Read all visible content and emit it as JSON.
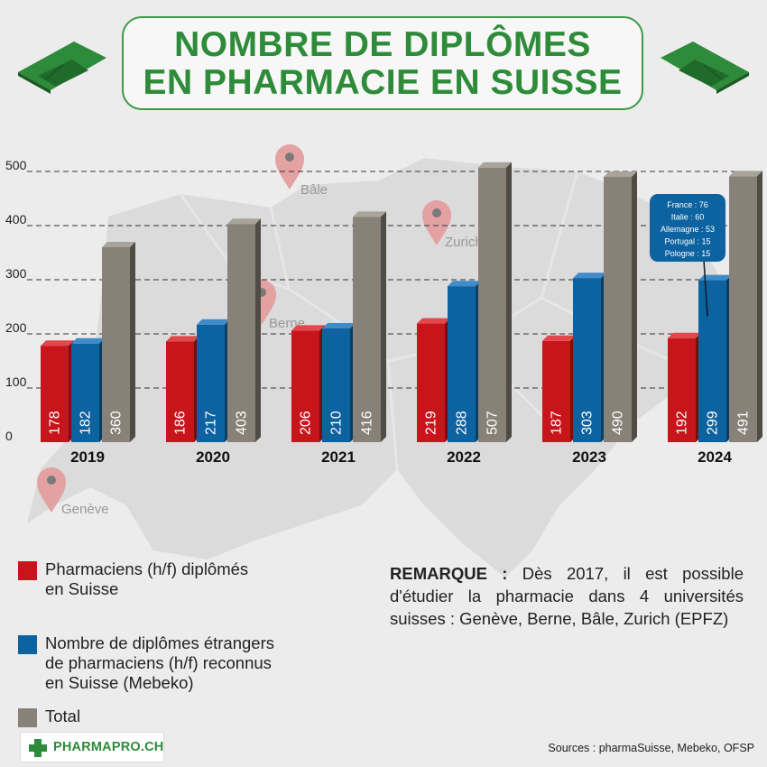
{
  "title": {
    "line1": "NOMBRE DE DIPLÔMES",
    "line2": "EN PHARMACIE EN SUISSE"
  },
  "cities": [
    "Bâle",
    "Zurich",
    "Berne",
    "Genève"
  ],
  "tooltip": [
    "France : 76",
    "Italie : 60",
    "Allemagne : 53",
    "Portugal : 15",
    "Pologne : 15"
  ],
  "colors": {
    "red": "#c8151b",
    "blue": "#0d62a0",
    "gray": "#878178",
    "green": "#2e8b3a"
  },
  "chart_data": {
    "type": "bar",
    "categories": [
      "2019",
      "2020",
      "2021",
      "2022",
      "2023",
      "2024"
    ],
    "series": [
      {
        "name": "Pharmaciens (h/f) diplômés en Suisse",
        "values": [
          178,
          186,
          206,
          219,
          187,
          192
        ]
      },
      {
        "name": "Nombre de diplômes étrangers de pharmaciens (h/f) reconnus en Suisse (Mebeko)",
        "values": [
          182,
          217,
          210,
          288,
          303,
          299
        ]
      },
      {
        "name": "Total",
        "values": [
          360,
          403,
          416,
          507,
          490,
          491
        ]
      }
    ],
    "yticks": [
      0,
      100,
      200,
      300,
      400,
      500
    ],
    "ylim": [
      0,
      500
    ],
    "grid": true
  },
  "legend": {
    "red": "Pharmaciens (h/f) diplômés\nen Suisse",
    "blue": "Nombre de diplômes étrangers\nde pharmaciens (h/f) reconnus\nen Suisse (Mebeko)",
    "gray": "Total"
  },
  "remark": {
    "label": "REMARQUE :",
    "text": "Dès 2017, il est possible d'étudier la pharmacie dans 4 universités suisses : Genève, Berne, Bâle, Zurich (EPFZ)"
  },
  "source": "Sources : pharmaSuisse, Mebeko, OFSP",
  "logo": "PHARMAPRO.CH"
}
